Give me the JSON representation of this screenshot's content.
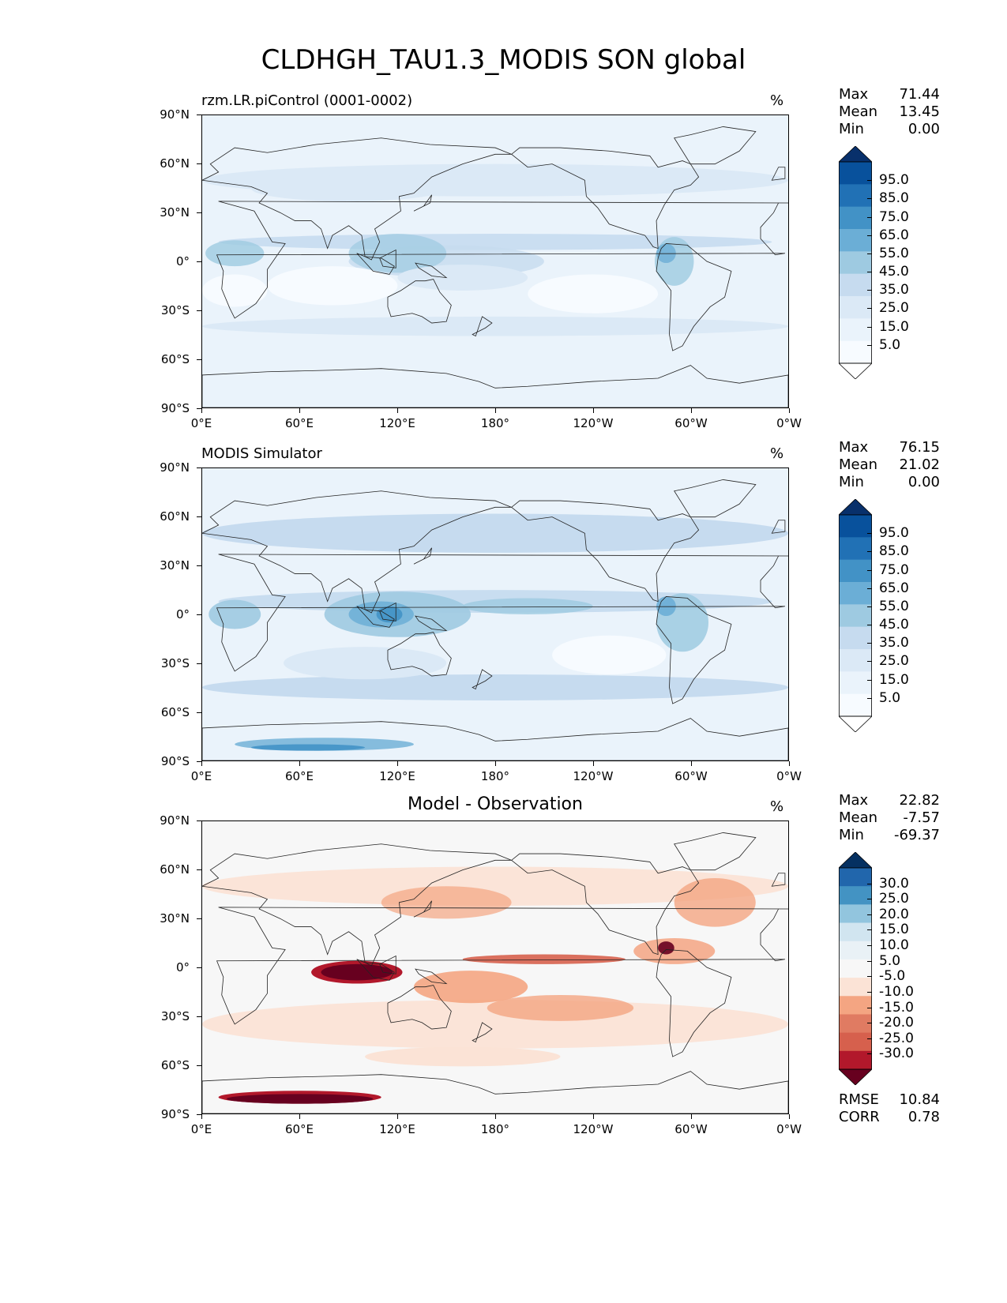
{
  "figure": {
    "title": "CLDHGH_TAU1.3_MODIS SON global"
  },
  "axes": {
    "lat_labels": [
      "90°N",
      "60°N",
      "30°N",
      "0°",
      "30°S",
      "60°S",
      "90°S"
    ],
    "lon_labels": [
      "0°E",
      "60°E",
      "120°E",
      "180°",
      "120°W",
      "60°W",
      "0°W"
    ]
  },
  "panels": [
    {
      "title": "rzm.LR.piControl (0001-0002)",
      "title_style": "left",
      "unit": "%",
      "stats": [
        {
          "label": "Max",
          "value": "71.44"
        },
        {
          "label": "Mean",
          "value": "13.45"
        },
        {
          "label": "Min",
          "value": "0.00"
        }
      ],
      "colorbar_labels": [
        "95.0",
        "85.0",
        "75.0",
        "65.0",
        "55.0",
        "45.0",
        "35.0",
        "25.0",
        "15.0",
        "5.0"
      ],
      "colorbar_colors": [
        "#08306b",
        "#08519c",
        "#2171b5",
        "#4292c6",
        "#6baed6",
        "#9ecae1",
        "#c6dbef",
        "#dbe9f6",
        "#eaf3fb",
        "#f7fbff",
        "#ffffff"
      ],
      "map_style": "model"
    },
    {
      "title": "MODIS Simulator",
      "title_style": "left",
      "unit": "%",
      "stats": [
        {
          "label": "Max",
          "value": "76.15"
        },
        {
          "label": "Mean",
          "value": "21.02"
        },
        {
          "label": "Min",
          "value": "0.00"
        }
      ],
      "colorbar_labels": [
        "95.0",
        "85.0",
        "75.0",
        "65.0",
        "55.0",
        "45.0",
        "35.0",
        "25.0",
        "15.0",
        "5.0"
      ],
      "colorbar_colors": [
        "#08306b",
        "#08519c",
        "#2171b5",
        "#4292c6",
        "#6baed6",
        "#9ecae1",
        "#c6dbef",
        "#dbe9f6",
        "#eaf3fb",
        "#f7fbff",
        "#ffffff"
      ],
      "map_style": "obs"
    },
    {
      "title": "Model - Observation",
      "title_style": "center",
      "unit": "%",
      "stats": [
        {
          "label": "Max",
          "value": "22.82"
        },
        {
          "label": "Mean",
          "value": "-7.57"
        },
        {
          "label": "Min",
          "value": "-69.37"
        }
      ],
      "extra_stats": [
        {
          "label": "RMSE",
          "value": "10.84"
        },
        {
          "label": "CORR",
          "value": "0.78"
        }
      ],
      "colorbar_labels": [
        "30.0",
        "25.0",
        "20.0",
        "15.0",
        "10.0",
        "5.0",
        "-5.0",
        "-10.0",
        "-15.0",
        "-20.0",
        "-25.0",
        "-30.0"
      ],
      "colorbar_colors": [
        "#053061",
        "#2166ac",
        "#4393c3",
        "#92c5de",
        "#d1e5f0",
        "#e9f1f6",
        "#f7f7f7",
        "#fbe3d6",
        "#f4a582",
        "#e07b62",
        "#d6604d",
        "#b2182b",
        "#67001f"
      ],
      "map_style": "diff"
    }
  ]
}
